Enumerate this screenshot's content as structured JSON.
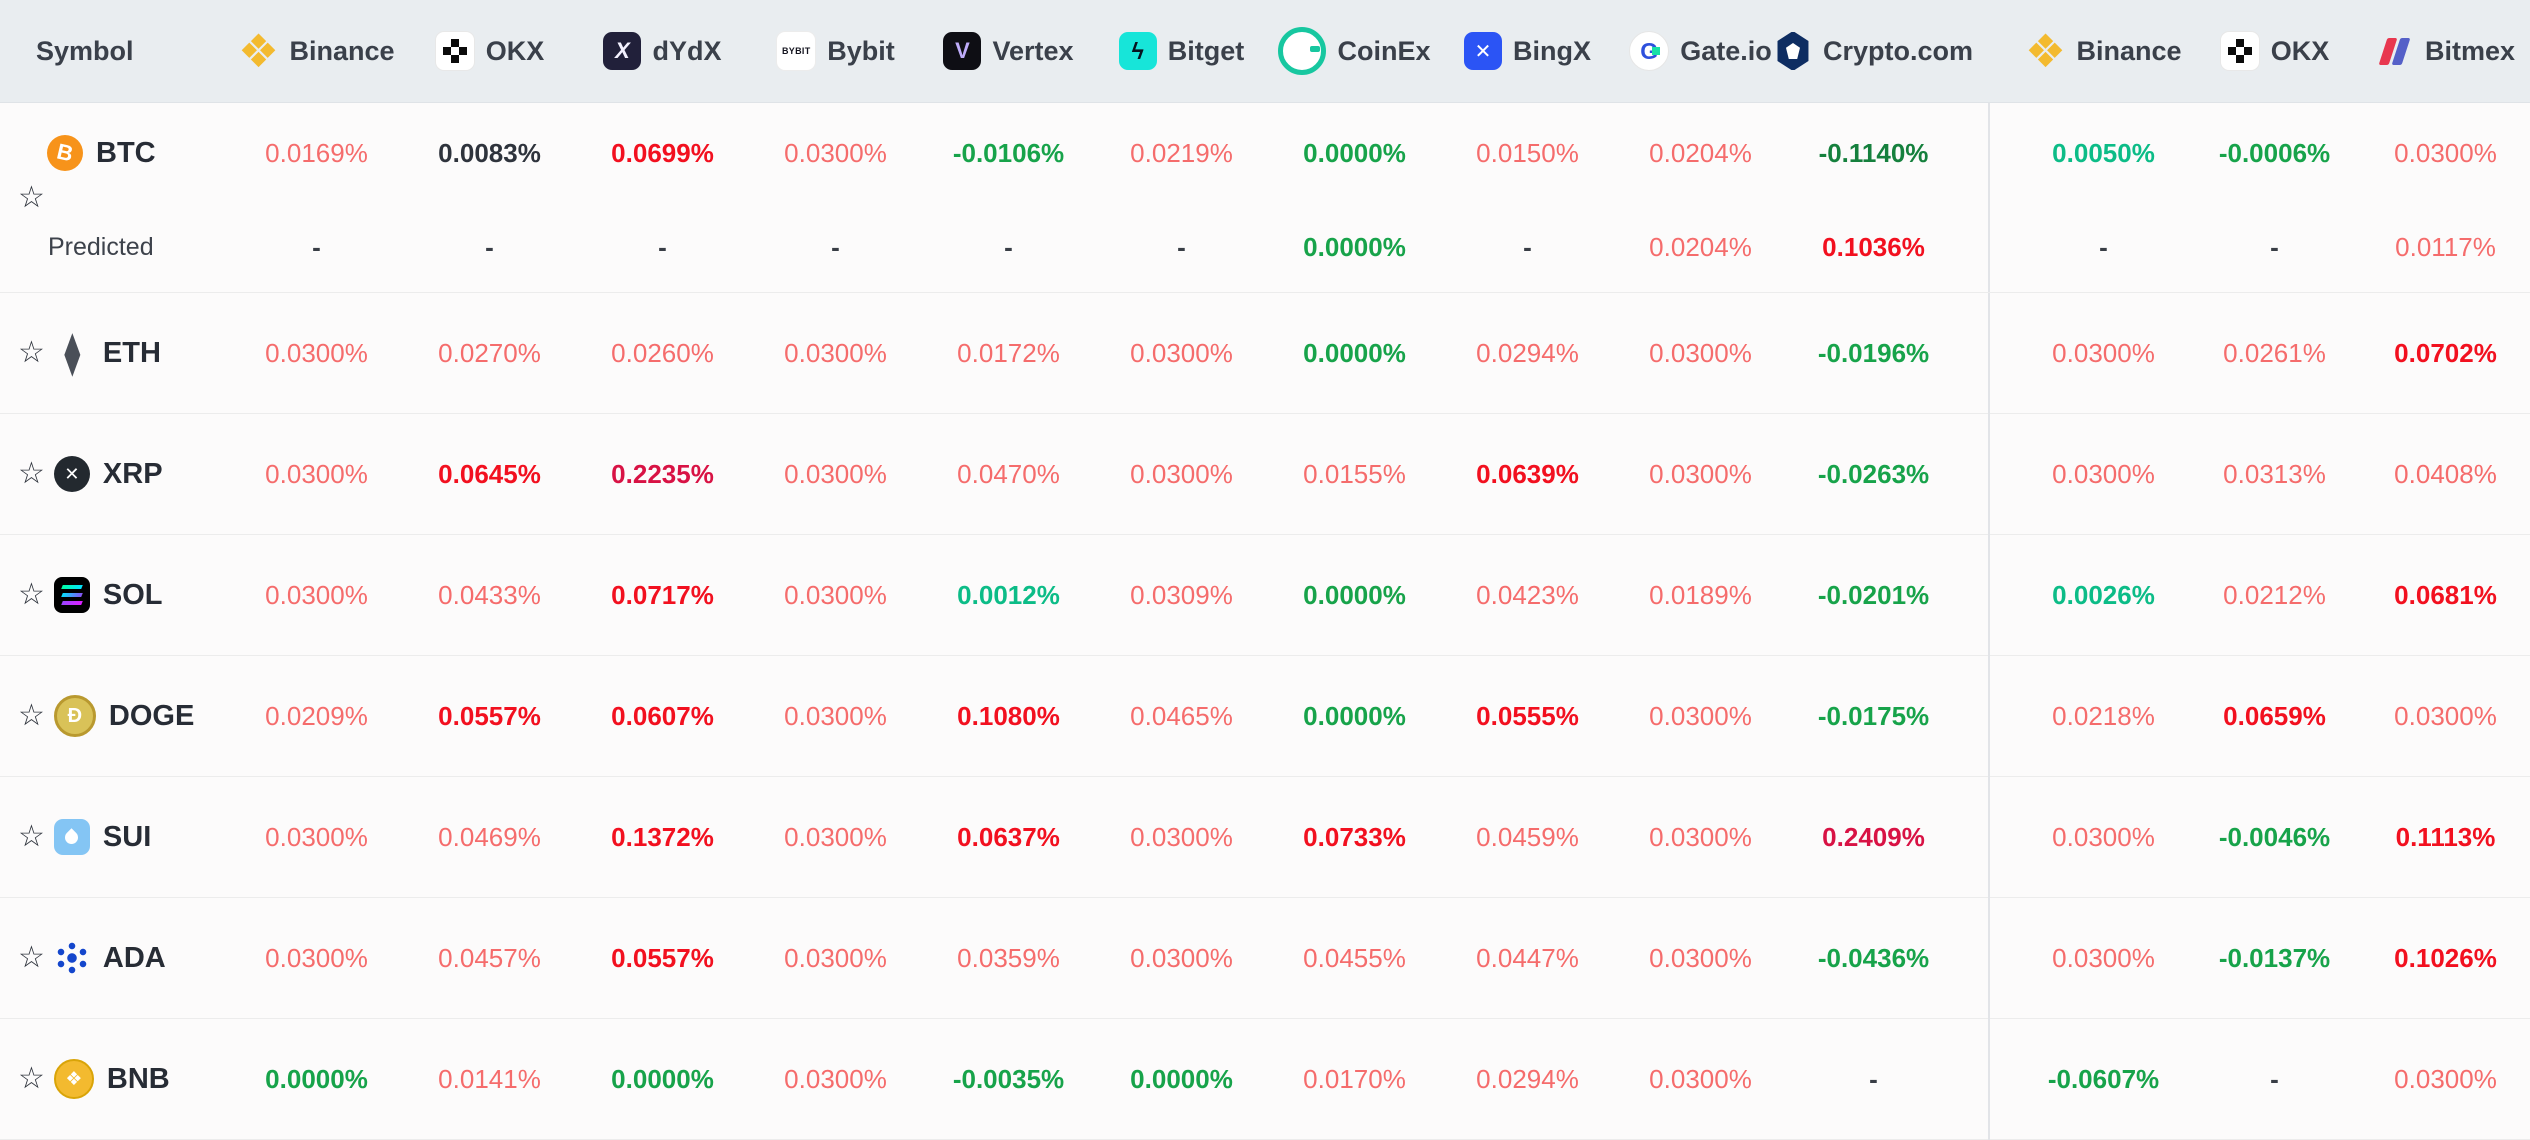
{
  "header": {
    "symbol_label": "Symbol",
    "exchanges_left": [
      {
        "label": "Binance",
        "icon": "binance"
      },
      {
        "label": "OKX",
        "icon": "okx"
      },
      {
        "label": "dYdX",
        "icon": "dydx"
      },
      {
        "label": "Bybit",
        "icon": "bybit"
      },
      {
        "label": "Vertex",
        "icon": "vertex"
      },
      {
        "label": "Bitget",
        "icon": "bitget"
      },
      {
        "label": "CoinEx",
        "icon": "coinex"
      },
      {
        "label": "BingX",
        "icon": "bingx"
      },
      {
        "label": "Gate.io",
        "icon": "gateio"
      },
      {
        "label": "Crypto.com",
        "icon": "cryptocom"
      }
    ],
    "exchanges_right": [
      {
        "label": "Binance",
        "icon": "binance"
      },
      {
        "label": "OKX",
        "icon": "okx"
      },
      {
        "label": "Bitmex",
        "icon": "bitmex"
      }
    ]
  },
  "icon_art": {
    "bybit_logo_text": "BYBIT",
    "star_glyph": "☆"
  },
  "palette": {
    "r1": "#f56c6c",
    "r2": "#f2101f",
    "r3": "#d81244",
    "g1": "#0cbc87",
    "g2": "#17a34a",
    "g3": "#15803d",
    "k": "#2e333c",
    "dash": "#383d45"
  },
  "rows": [
    {
      "symbol": "BTC",
      "coin_icon": "btc",
      "values": [
        {
          "v": "0.0169%",
          "c": "r1"
        },
        {
          "v": "0.0083%",
          "c": "k"
        },
        {
          "v": "0.0699%",
          "c": "r2"
        },
        {
          "v": "0.0300%",
          "c": "r1"
        },
        {
          "v": "-0.0106%",
          "c": "g2"
        },
        {
          "v": "0.0219%",
          "c": "r1"
        },
        {
          "v": "0.0000%",
          "c": "g2"
        },
        {
          "v": "0.0150%",
          "c": "r1"
        },
        {
          "v": "0.0204%",
          "c": "r1"
        },
        {
          "v": "-0.1140%",
          "c": "g3"
        },
        {
          "v": "0.0050%",
          "c": "g1"
        },
        {
          "v": "-0.0006%",
          "c": "g2"
        },
        {
          "v": "0.0300%",
          "c": "r1"
        }
      ],
      "predicted_label": "Predicted",
      "predicted": [
        {
          "v": "-",
          "c": "dash"
        },
        {
          "v": "-",
          "c": "dash"
        },
        {
          "v": "-",
          "c": "dash"
        },
        {
          "v": "-",
          "c": "dash"
        },
        {
          "v": "-",
          "c": "dash"
        },
        {
          "v": "-",
          "c": "dash"
        },
        {
          "v": "0.0000%",
          "c": "g2"
        },
        {
          "v": "-",
          "c": "dash"
        },
        {
          "v": "0.0204%",
          "c": "r1"
        },
        {
          "v": "0.1036%",
          "c": "r2"
        },
        {
          "v": "-",
          "c": "dash"
        },
        {
          "v": "-",
          "c": "dash"
        },
        {
          "v": "0.0117%",
          "c": "r1"
        }
      ]
    },
    {
      "symbol": "ETH",
      "coin_icon": "eth",
      "values": [
        {
          "v": "0.0300%",
          "c": "r1"
        },
        {
          "v": "0.0270%",
          "c": "r1"
        },
        {
          "v": "0.0260%",
          "c": "r1"
        },
        {
          "v": "0.0300%",
          "c": "r1"
        },
        {
          "v": "0.0172%",
          "c": "r1"
        },
        {
          "v": "0.0300%",
          "c": "r1"
        },
        {
          "v": "0.0000%",
          "c": "g2"
        },
        {
          "v": "0.0294%",
          "c": "r1"
        },
        {
          "v": "0.0300%",
          "c": "r1"
        },
        {
          "v": "-0.0196%",
          "c": "g2"
        },
        {
          "v": "0.0300%",
          "c": "r1"
        },
        {
          "v": "0.0261%",
          "c": "r1"
        },
        {
          "v": "0.0702%",
          "c": "r2"
        }
      ]
    },
    {
      "symbol": "XRP",
      "coin_icon": "xrp",
      "values": [
        {
          "v": "0.0300%",
          "c": "r1"
        },
        {
          "v": "0.0645%",
          "c": "r2"
        },
        {
          "v": "0.2235%",
          "c": "r3"
        },
        {
          "v": "0.0300%",
          "c": "r1"
        },
        {
          "v": "0.0470%",
          "c": "r1"
        },
        {
          "v": "0.0300%",
          "c": "r1"
        },
        {
          "v": "0.0155%",
          "c": "r1"
        },
        {
          "v": "0.0639%",
          "c": "r2"
        },
        {
          "v": "0.0300%",
          "c": "r1"
        },
        {
          "v": "-0.0263%",
          "c": "g2"
        },
        {
          "v": "0.0300%",
          "c": "r1"
        },
        {
          "v": "0.0313%",
          "c": "r1"
        },
        {
          "v": "0.0408%",
          "c": "r1"
        }
      ]
    },
    {
      "symbol": "SOL",
      "coin_icon": "sol",
      "values": [
        {
          "v": "0.0300%",
          "c": "r1"
        },
        {
          "v": "0.0433%",
          "c": "r1"
        },
        {
          "v": "0.0717%",
          "c": "r2"
        },
        {
          "v": "0.0300%",
          "c": "r1"
        },
        {
          "v": "0.0012%",
          "c": "g1"
        },
        {
          "v": "0.0309%",
          "c": "r1"
        },
        {
          "v": "0.0000%",
          "c": "g2"
        },
        {
          "v": "0.0423%",
          "c": "r1"
        },
        {
          "v": "0.0189%",
          "c": "r1"
        },
        {
          "v": "-0.0201%",
          "c": "g2"
        },
        {
          "v": "0.0026%",
          "c": "g1"
        },
        {
          "v": "0.0212%",
          "c": "r1"
        },
        {
          "v": "0.0681%",
          "c": "r2"
        }
      ]
    },
    {
      "symbol": "DOGE",
      "coin_icon": "doge",
      "values": [
        {
          "v": "0.0209%",
          "c": "r1"
        },
        {
          "v": "0.0557%",
          "c": "r2"
        },
        {
          "v": "0.0607%",
          "c": "r2"
        },
        {
          "v": "0.0300%",
          "c": "r1"
        },
        {
          "v": "0.1080%",
          "c": "r2"
        },
        {
          "v": "0.0465%",
          "c": "r1"
        },
        {
          "v": "0.0000%",
          "c": "g2"
        },
        {
          "v": "0.0555%",
          "c": "r2"
        },
        {
          "v": "0.0300%",
          "c": "r1"
        },
        {
          "v": "-0.0175%",
          "c": "g2"
        },
        {
          "v": "0.0218%",
          "c": "r1"
        },
        {
          "v": "0.0659%",
          "c": "r2"
        },
        {
          "v": "0.0300%",
          "c": "r1"
        }
      ]
    },
    {
      "symbol": "SUI",
      "coin_icon": "sui",
      "values": [
        {
          "v": "0.0300%",
          "c": "r1"
        },
        {
          "v": "0.0469%",
          "c": "r1"
        },
        {
          "v": "0.1372%",
          "c": "r2"
        },
        {
          "v": "0.0300%",
          "c": "r1"
        },
        {
          "v": "0.0637%",
          "c": "r2"
        },
        {
          "v": "0.0300%",
          "c": "r1"
        },
        {
          "v": "0.0733%",
          "c": "r2"
        },
        {
          "v": "0.0459%",
          "c": "r1"
        },
        {
          "v": "0.0300%",
          "c": "r1"
        },
        {
          "v": "0.2409%",
          "c": "r3"
        },
        {
          "v": "0.0300%",
          "c": "r1"
        },
        {
          "v": "-0.0046%",
          "c": "g2"
        },
        {
          "v": "0.1113%",
          "c": "r2"
        }
      ]
    },
    {
      "symbol": "ADA",
      "coin_icon": "ada",
      "values": [
        {
          "v": "0.0300%",
          "c": "r1"
        },
        {
          "v": "0.0457%",
          "c": "r1"
        },
        {
          "v": "0.0557%",
          "c": "r2"
        },
        {
          "v": "0.0300%",
          "c": "r1"
        },
        {
          "v": "0.0359%",
          "c": "r1"
        },
        {
          "v": "0.0300%",
          "c": "r1"
        },
        {
          "v": "0.0455%",
          "c": "r1"
        },
        {
          "v": "0.0447%",
          "c": "r1"
        },
        {
          "v": "0.0300%",
          "c": "r1"
        },
        {
          "v": "-0.0436%",
          "c": "g2"
        },
        {
          "v": "0.0300%",
          "c": "r1"
        },
        {
          "v": "-0.0137%",
          "c": "g2"
        },
        {
          "v": "0.1026%",
          "c": "r2"
        }
      ]
    },
    {
      "symbol": "BNB",
      "coin_icon": "bnb",
      "values": [
        {
          "v": "0.0000%",
          "c": "g2"
        },
        {
          "v": "0.0141%",
          "c": "r1"
        },
        {
          "v": "0.0000%",
          "c": "g2"
        },
        {
          "v": "0.0300%",
          "c": "r1"
        },
        {
          "v": "-0.0035%",
          "c": "g2"
        },
        {
          "v": "0.0000%",
          "c": "g2"
        },
        {
          "v": "0.0170%",
          "c": "r1"
        },
        {
          "v": "0.0294%",
          "c": "r1"
        },
        {
          "v": "0.0300%",
          "c": "r1"
        },
        {
          "v": "-",
          "c": "dash"
        },
        {
          "v": "-0.0607%",
          "c": "g2"
        },
        {
          "v": "-",
          "c": "dash"
        },
        {
          "v": "0.0300%",
          "c": "r1"
        }
      ]
    }
  ]
}
